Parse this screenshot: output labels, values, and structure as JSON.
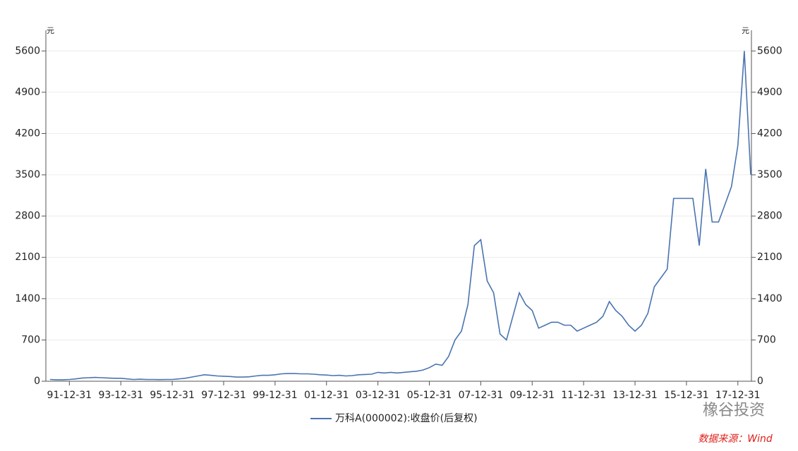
{
  "chart_data": {
    "type": "line",
    "y_label": "元",
    "y2_label": "元",
    "categories": [
      null,
      null,
      null,
      "91-12-31",
      null,
      null,
      null,
      null,
      null,
      null,
      null,
      "93-12-31",
      null,
      null,
      null,
      null,
      null,
      null,
      null,
      "95-12-31",
      null,
      null,
      null,
      null,
      null,
      null,
      null,
      "97-12-31",
      null,
      null,
      null,
      null,
      null,
      null,
      null,
      "99-12-31",
      null,
      null,
      null,
      null,
      null,
      null,
      null,
      "01-12-31",
      null,
      null,
      null,
      null,
      null,
      null,
      null,
      "03-12-31",
      null,
      null,
      null,
      null,
      null,
      null,
      null,
      "05-12-31",
      null,
      null,
      null,
      null,
      null,
      null,
      null,
      "07-12-31",
      null,
      null,
      null,
      null,
      null,
      null,
      null,
      "09-12-31",
      null,
      null,
      null,
      null,
      null,
      null,
      null,
      "11-12-31",
      null,
      null,
      null,
      null,
      null,
      null,
      null,
      "13-12-31",
      null,
      null,
      null,
      null,
      null,
      null,
      null,
      "15-12-31",
      null,
      null,
      null,
      null,
      null,
      null,
      null,
      "17-12-31",
      null,
      null
    ],
    "series": [
      {
        "name": "万科A(000002):收盘价(后复权)",
        "color": "#4a74b0",
        "values": [
          30,
          25,
          25,
          30,
          40,
          55,
          60,
          65,
          60,
          55,
          50,
          50,
          40,
          30,
          35,
          30,
          30,
          28,
          30,
          30,
          40,
          50,
          70,
          90,
          110,
          100,
          90,
          85,
          80,
          70,
          70,
          75,
          90,
          100,
          100,
          110,
          125,
          130,
          130,
          125,
          125,
          120,
          110,
          105,
          95,
          100,
          90,
          95,
          110,
          115,
          120,
          150,
          140,
          150,
          140,
          150,
          160,
          170,
          190,
          230,
          290,
          270,
          420,
          700,
          850,
          1300,
          2300,
          2400,
          1700,
          1500,
          800,
          700,
          1100,
          1500,
          1300,
          1200,
          900,
          950,
          1000,
          1000,
          950,
          950,
          850,
          900,
          950,
          1000,
          1100,
          1350,
          1200,
          1100,
          950,
          850,
          950,
          1150,
          1600,
          1750,
          1900,
          3100,
          3100,
          3100,
          3100,
          2300,
          3600,
          2700,
          2700,
          3000,
          3300,
          4000,
          5600,
          3500
        ]
      }
    ],
    "ylim": [
      0,
      5950
    ],
    "yticks": [
      0,
      700,
      1400,
      2100,
      2800,
      3500,
      4200,
      4900,
      5600
    ],
    "y2lim": [
      0,
      5950
    ],
    "y2ticks": [
      0,
      700,
      1400,
      2100,
      2800,
      3500,
      4200,
      4900,
      5600
    ],
    "grid": true,
    "watermark": "橡谷投资",
    "source": "数据来源：Wind"
  }
}
